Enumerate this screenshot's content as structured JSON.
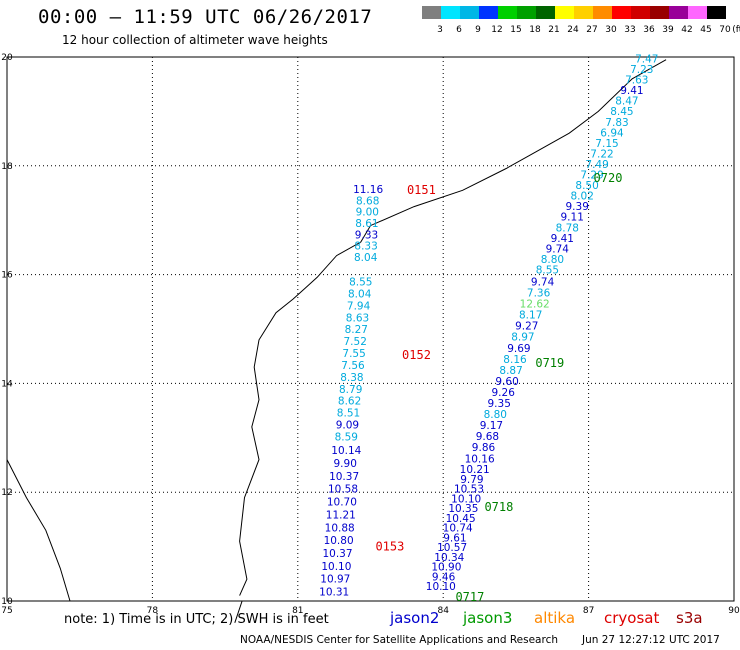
{
  "title": "00:00 – 11:59 UTC 06/26/2017",
  "subtitle": "12 hour collection of altimeter wave heights",
  "scale": {
    "labels": [
      "3",
      "6",
      "9",
      "12",
      "15",
      "18",
      "21",
      "24",
      "27",
      "30",
      "33",
      "36",
      "39",
      "42",
      "45",
      "70"
    ],
    "unit": "(ft)",
    "colors": [
      "#7f7f7f",
      "#00e5ff",
      "#00b7e6",
      "#0033ff",
      "#00d000",
      "#00a000",
      "#006400",
      "#ffff00",
      "#ffd000",
      "#ff8c00",
      "#ff0000",
      "#d00000",
      "#990000",
      "#990099",
      "#ff66ff",
      "#000000"
    ]
  },
  "chart_data": {
    "type": "map",
    "lon_ticks": [
      "75",
      "78",
      "81",
      "84",
      "87",
      "90"
    ],
    "lat_ticks": [
      "20",
      "18",
      "16",
      "14",
      "12",
      "10"
    ],
    "lon_range": [
      75,
      90
    ],
    "lat_range": [
      10,
      20
    ],
    "tracks": [
      {
        "time": "0151",
        "time_color": "#e00000",
        "time_pos": {
          "lon": 83.55,
          "lat": 17.48
        },
        "start": {
          "lon": 82.45,
          "lat": 17.5
        },
        "end": {
          "lon": 82.4,
          "lat": 16.25
        },
        "points": [
          {
            "v": "11.16",
            "c": "#0000cc"
          },
          {
            "v": "8.68",
            "c": "#00aadd"
          },
          {
            "v": "9.00",
            "c": "#00aadd"
          },
          {
            "v": "8.61",
            "c": "#00aadd"
          },
          {
            "v": "9.33",
            "c": "#0000cc"
          },
          {
            "v": "8.33",
            "c": "#00aadd"
          },
          {
            "v": "8.04",
            "c": "#00aadd"
          }
        ]
      },
      {
        "time": "0152",
        "time_color": "#e00000",
        "time_pos": {
          "lon": 83.45,
          "lat": 14.45
        },
        "start": {
          "lon": 82.3,
          "lat": 15.8
        },
        "end": {
          "lon": 82.0,
          "lat": 12.95
        },
        "points": [
          {
            "v": "8.55",
            "c": "#00aadd"
          },
          {
            "v": "8.04",
            "c": "#00aadd"
          },
          {
            "v": "7.94",
            "c": "#00aadd"
          },
          {
            "v": "8.63",
            "c": "#00aadd"
          },
          {
            "v": "8.27",
            "c": "#00aadd"
          },
          {
            "v": "7.52",
            "c": "#00aadd"
          },
          {
            "v": "7.55",
            "c": "#00aadd"
          },
          {
            "v": "7.56",
            "c": "#00aadd"
          },
          {
            "v": "8.38",
            "c": "#00aadd"
          },
          {
            "v": "8.79",
            "c": "#00aadd"
          },
          {
            "v": "8.62",
            "c": "#00aadd"
          },
          {
            "v": "8.51",
            "c": "#00aadd"
          },
          {
            "v": "9.09",
            "c": "#0000cc"
          },
          {
            "v": "8.59",
            "c": "#00aadd"
          }
        ]
      },
      {
        "time": "0153",
        "time_color": "#e00000",
        "time_pos": {
          "lon": 82.9,
          "lat": 10.93
        },
        "start": {
          "lon": 82.0,
          "lat": 12.7
        },
        "end": {
          "lon": 81.75,
          "lat": 10.1
        },
        "points": [
          {
            "v": "10.14",
            "c": "#0000cc"
          },
          {
            "v": "9.90",
            "c": "#0000cc"
          },
          {
            "v": "10.37",
            "c": "#0000cc"
          },
          {
            "v": "10.58",
            "c": "#0000cc"
          },
          {
            "v": "10.70",
            "c": "#0000cc"
          },
          {
            "v": "11.21",
            "c": "#0000cc"
          },
          {
            "v": "10.88",
            "c": "#0000cc"
          },
          {
            "v": "10.80",
            "c": "#0000cc"
          },
          {
            "v": "10.37",
            "c": "#0000cc"
          },
          {
            "v": "10.10",
            "c": "#0000cc"
          },
          {
            "v": "10.97",
            "c": "#0000cc"
          },
          {
            "v": "10.31",
            "c": "#0000cc"
          }
        ]
      },
      {
        "time": "0720",
        "time_color": "#008000",
        "time_pos": {
          "lon": 87.4,
          "lat": 17.7
        },
        "start": {
          "lon": 88.2,
          "lat": 19.9
        },
        "end": {
          "lon": 86.15,
          "lat": 16.02
        },
        "points": [
          {
            "v": "7.47",
            "c": "#00aadd"
          },
          {
            "v": "7.23",
            "c": "#00aadd"
          },
          {
            "v": "7.63",
            "c": "#00aadd"
          },
          {
            "v": "9.41",
            "c": "#0000cc"
          },
          {
            "v": "8.47",
            "c": "#00aadd"
          },
          {
            "v": "8.45",
            "c": "#00aadd"
          },
          {
            "v": "7.83",
            "c": "#00aadd"
          },
          {
            "v": "6.94",
            "c": "#00aadd"
          },
          {
            "v": "7.15",
            "c": "#00aadd"
          },
          {
            "v": "7.22",
            "c": "#00aadd"
          },
          {
            "v": "7.49",
            "c": "#00aadd"
          },
          {
            "v": "7.29",
            "c": "#00aadd"
          },
          {
            "v": "8.50",
            "c": "#00aadd"
          },
          {
            "v": "8.02",
            "c": "#00aadd"
          },
          {
            "v": "9.39",
            "c": "#0000cc"
          },
          {
            "v": "9.11",
            "c": "#0000cc"
          },
          {
            "v": "8.78",
            "c": "#00aadd"
          },
          {
            "v": "9.41",
            "c": "#0000cc"
          },
          {
            "v": "9.74",
            "c": "#0000cc"
          },
          {
            "v": "8.80",
            "c": "#00aadd"
          },
          {
            "v": "8.55",
            "c": "#00aadd"
          }
        ]
      },
      {
        "time": "0719",
        "time_color": "#008000",
        "time_pos": {
          "lon": 86.2,
          "lat": 14.3
        },
        "start": {
          "lon": 86.05,
          "lat": 15.8
        },
        "end": {
          "lon": 84.75,
          "lat": 12.55
        },
        "points": [
          {
            "v": "9.74",
            "c": "#0000cc"
          },
          {
            "v": "7.36",
            "c": "#00aadd"
          },
          {
            "v": "12.62",
            "c": "#66dd66"
          },
          {
            "v": "8.17",
            "c": "#00aadd"
          },
          {
            "v": "9.27",
            "c": "#0000cc"
          },
          {
            "v": "8.97",
            "c": "#00aadd"
          },
          {
            "v": "9.69",
            "c": "#0000cc"
          },
          {
            "v": "8.16",
            "c": "#00aadd"
          },
          {
            "v": "8.87",
            "c": "#00aadd"
          },
          {
            "v": "9.60",
            "c": "#0000cc"
          },
          {
            "v": "9.26",
            "c": "#0000cc"
          },
          {
            "v": "9.35",
            "c": "#0000cc"
          },
          {
            "v": "8.80",
            "c": "#00aadd"
          },
          {
            "v": "9.17",
            "c": "#0000cc"
          },
          {
            "v": "9.68",
            "c": "#0000cc"
          },
          {
            "v": "9.86",
            "c": "#0000cc"
          },
          {
            "v": "10.16",
            "c": "#0000cc"
          }
        ]
      },
      {
        "time": "0718",
        "time_color": "#008000",
        "time_pos": {
          "lon": 85.15,
          "lat": 11.65
        },
        "start": {
          "lon": 84.65,
          "lat": 12.35
        },
        "end": {
          "lon": 83.95,
          "lat": 10.2
        },
        "points": [
          {
            "v": "10.21",
            "c": "#0000cc"
          },
          {
            "v": "9.79",
            "c": "#0000cc"
          },
          {
            "v": "10.53",
            "c": "#0000cc"
          },
          {
            "v": "10.10",
            "c": "#0000cc"
          },
          {
            "v": "10.35",
            "c": "#0000cc"
          },
          {
            "v": "10.45",
            "c": "#0000cc"
          },
          {
            "v": "10.74",
            "c": "#0000cc"
          },
          {
            "v": "9.61",
            "c": "#0000cc"
          },
          {
            "v": "10.57",
            "c": "#0000cc"
          },
          {
            "v": "10.34",
            "c": "#0000cc"
          },
          {
            "v": "10.90",
            "c": "#0000cc"
          },
          {
            "v": "9.46",
            "c": "#0000cc"
          },
          {
            "v": "10.10",
            "c": "#0000cc"
          }
        ]
      },
      {
        "time": "0717",
        "time_color": "#008000",
        "time_pos": {
          "lon": 84.55,
          "lat": 10.0
        },
        "start": null,
        "end": null,
        "points": []
      }
    ]
  },
  "note": "note:  1) Time is in UTC;  2) SWH is in feet",
  "satellites": [
    {
      "name": "jason2",
      "color": "#0000cc"
    },
    {
      "name": "jason3",
      "color": "#009900"
    },
    {
      "name": "altika",
      "color": "#ff8800"
    },
    {
      "name": "cryosat",
      "color": "#dd0000"
    },
    {
      "name": "s3a",
      "color": "#990000"
    }
  ],
  "credit": "NOAA/NESDIS Center for Satellite Applications and Research",
  "timestamp": "Jun 27 12:27:12 UTC 2017"
}
